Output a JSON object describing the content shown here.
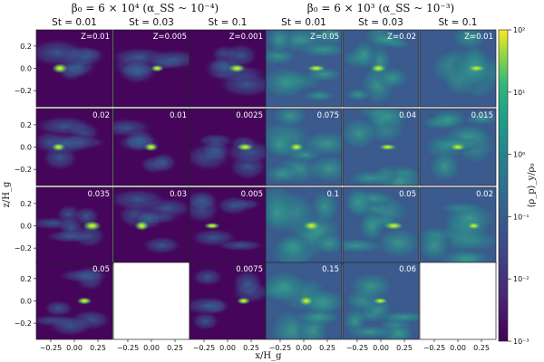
{
  "chart_data": {
    "type": "heatmap",
    "group_titles": [
      "β₀ = 6 × 10⁴ (α_SS ~ 10⁻⁴)",
      "β₀ = 6 × 10³ (α_SS ~ 10⁻³)"
    ],
    "column_headers": [
      "St = 0.01",
      "St = 0.03",
      "St = 0.1",
      "St = 0.01",
      "St = 0.03",
      "St = 0.1"
    ],
    "panels": [
      [
        "Z=0.01",
        "Z=0.005",
        "Z=0.001",
        "Z=0.05",
        "Z=0.02",
        "Z=0.01"
      ],
      [
        "0.02",
        "0.01",
        "0.0025",
        "0.075",
        "0.04",
        "0.015"
      ],
      [
        "0.035",
        "0.03",
        "0.005",
        "0.1",
        "0.05",
        "0.02"
      ],
      [
        "0.05",
        null,
        "0.0075",
        "0.15",
        "0.06",
        null
      ]
    ],
    "xlabel": "x/H_g",
    "ylabel": "z/H_g",
    "x_ticks": [
      "−0.25",
      "0.00",
      "0.25"
    ],
    "y_ticks": [
      "0.2",
      "0.0",
      "−0.2"
    ],
    "xlim": [
      -0.4,
      0.4
    ],
    "ylim": [
      -0.4,
      0.4
    ],
    "colorbar": {
      "label": "⟨ρ_p⟩_y/ρ₀",
      "scale": "log",
      "range": [
        0.001,
        100
      ],
      "ticks": [
        "10²",
        "10¹",
        "10⁰",
        "10⁻¹",
        "10⁻²",
        "10⁻³"
      ],
      "colormap": "viridis"
    }
  }
}
